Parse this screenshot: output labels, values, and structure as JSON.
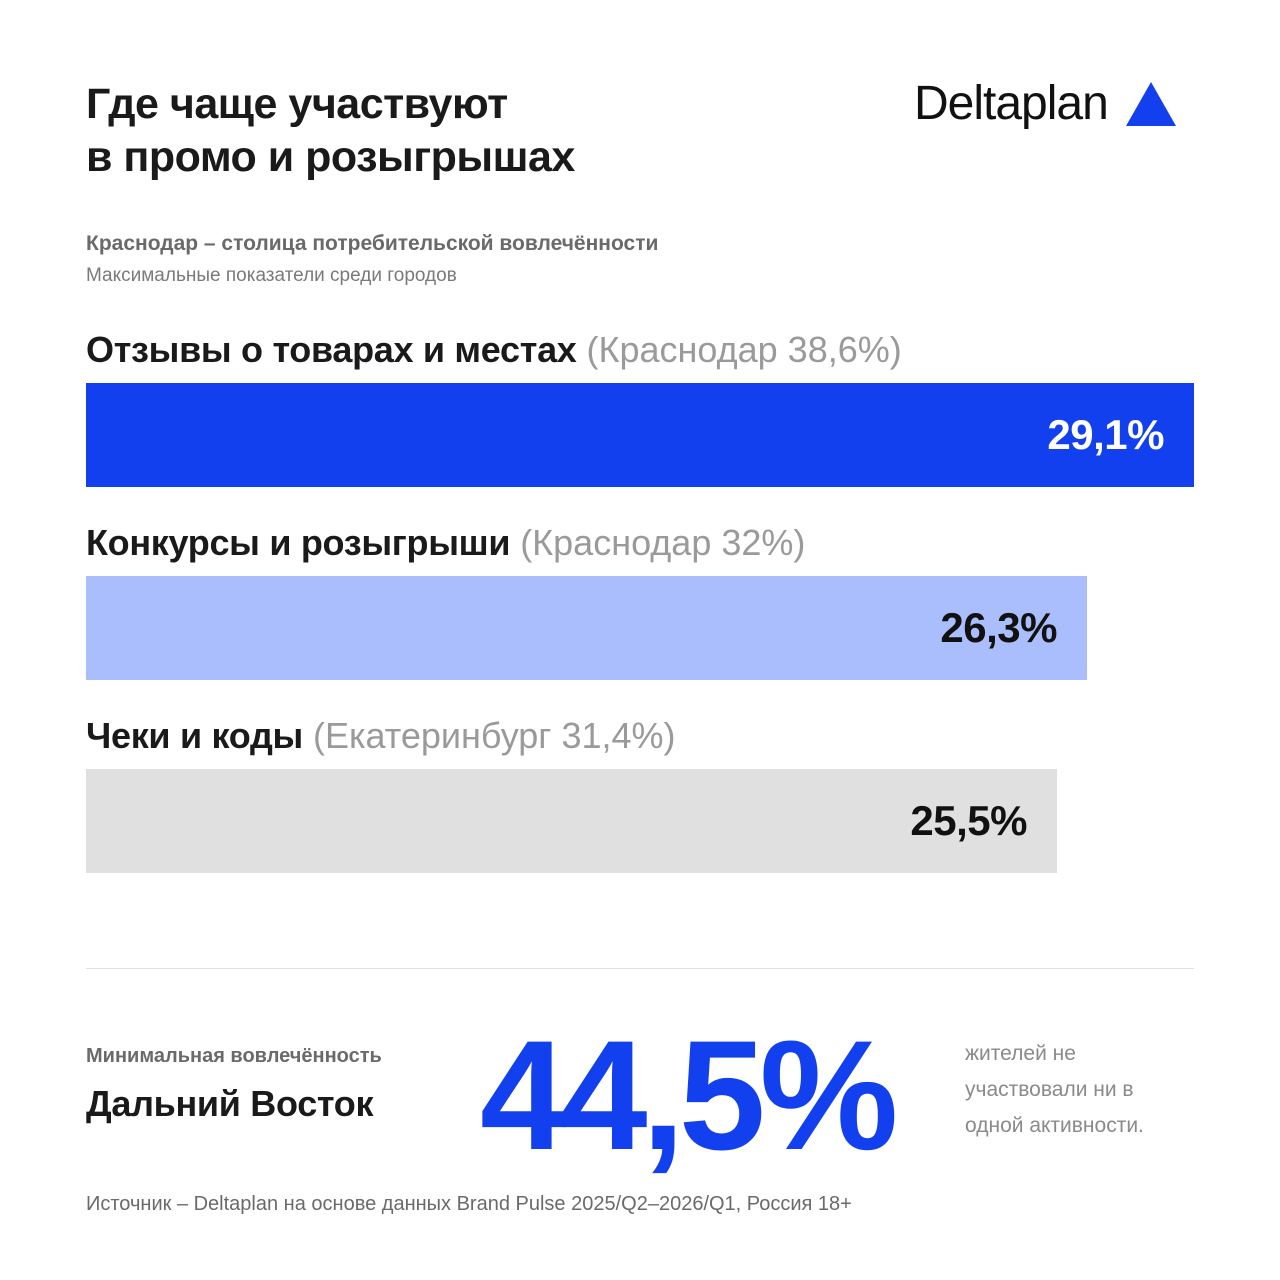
{
  "title": {
    "line1": "Где чаще участвуют",
    "line2": "в промо и розыгрышах"
  },
  "logo": {
    "text": "Deltaplan"
  },
  "subtitle": "Краснодар – столица потребительской вовлечённости",
  "subnote": "Максимальные показатели среди городов",
  "colors": {
    "accent": "#1240ee",
    "bar_primary": "#1240ee",
    "bar_secondary": "#aabdfc",
    "bar_tertiary": "#e0e0e0"
  },
  "chart_data": {
    "type": "bar",
    "orientation": "horizontal",
    "categories": [
      {
        "label": "Отзывы о товарах и местах",
        "note": "(Краснодар 38,6%)",
        "value": 29.1,
        "value_label": "29,1%",
        "color": "#1240ee",
        "text_color": "#ffffff"
      },
      {
        "label": "Конкурсы и розыгрыши",
        "note": "(Краснодар 32%)",
        "value": 26.3,
        "value_label": "26,3%",
        "color": "#aabdfc",
        "text_color": "#111111"
      },
      {
        "label": "Чеки и коды",
        "note": "(Екатеринбург 31,4%)",
        "value": 25.5,
        "value_label": "25,5%",
        "color": "#e0e0e0",
        "text_color": "#111111"
      }
    ],
    "max_value": 29.1
  },
  "minimum": {
    "label": "Минимальная вовлечённость",
    "region": "Дальний Восток",
    "value": "44,5%",
    "description": [
      "жителей не",
      "участвовали ни в",
      "одной активности."
    ]
  },
  "source": "Источник – Deltaplan на основе данных Brand Pulse 2025/Q2–2026/Q1, Россия 18+"
}
